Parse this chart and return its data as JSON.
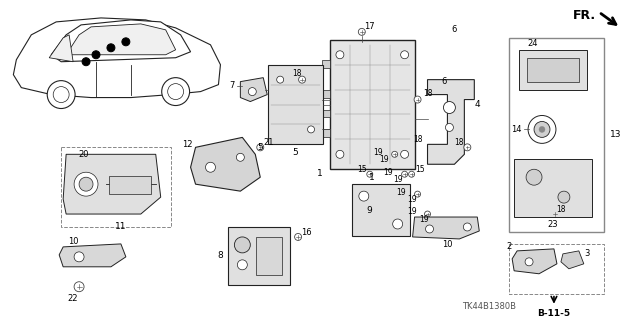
{
  "bg_color": "#ffffff",
  "fig_width": 6.4,
  "fig_height": 3.19,
  "dpi": 100,
  "diagram_ref": "TK44B1380B",
  "fr_text": "FR.",
  "b115_text": "B-11-5"
}
